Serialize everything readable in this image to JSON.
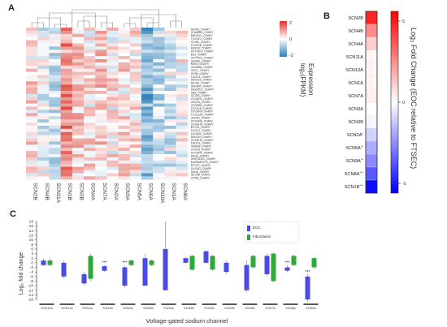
{
  "panels": {
    "a": "A",
    "b": "B",
    "c": "C"
  },
  "heatmap": {
    "colorbar": {
      "title": "Expression",
      "subtitle": "log₂(FPKM)",
      "ticks": [
        "2",
        "0",
        "-2"
      ]
    },
    "columns": [
      "SCN2B",
      "SCN4B",
      "SCN11A",
      "SCN1B",
      "SCN3B",
      "SCN4A",
      "SCN7A",
      "SCN2A",
      "SCN3A",
      "SCN5A",
      "SCN9A",
      "SCN10A",
      "SCN1A",
      "SCN8A"
    ],
    "rows": [
      "AD760_OVARY",
      "CHAMRA_OVARY",
      "EBKOV1_OVARY",
      "TOV21G_OVARY",
      "OVISE_OVARY",
      "COV318_OVARY",
      "MKOS2_OVARY",
      "OVTOKO_OVARY",
      "ES2_OVARY",
      "OVTOKO_OVARY",
      "JHOM1_OVARY",
      "RMGI_OVARY",
      "JHOM2B_OVARY",
      "JHOC_OVARY",
      "OV56_OVARY",
      "CAOV4_OVARY",
      "IGROV1_OVARY",
      "NICAS_OVARY",
      "SNU840_OVARY",
      "OACM5.1_OVARY",
      "IGM_OVARY",
      "OC316_OVARY",
      "OVCAR3_OVARY",
      "JHOC5_OVARY",
      "JHOM2B_OVARY",
      "COV318_OVARY",
      "OVCAR4_OVARY",
      "TOV112D_OVARY",
      "JHOS4_OVARY",
      "OVCAR8_OVARY",
      "OVSAHO_OVARY",
      "EFO21_OVARY",
      "FUOV1_OVARY",
      "COV504_OVARY",
      "SNU119_OVARY",
      "OVSAHO_OVARY",
      "CAOV3_OVARY",
      "OAW28_OVARY",
      "OVK18_OVARY",
      "OVCAR5_OVARY",
      "SNU8_OVARY",
      "ONCODG1_OVARY",
      "KURAMOCHI_OVARY",
      "EFO27_OVARY",
      "OVCAR_OVARY",
      "SNU8_OVARY",
      "HEYA8_OVARY",
      "OVMZ_OVARY"
    ],
    "values": []
  },
  "fold_change": {
    "title": "Log₂ Fold Change (EOC relative to FTSEC)",
    "genes": [
      "SCN2B",
      "SCN4B",
      "SCN4A",
      "SCN11A",
      "SCN10A",
      "SCN1A",
      "SCN7A",
      "SCN3A",
      "SCN3B",
      "SCN2A",
      "SCN5A",
      "SCN9A",
      "SCN8A",
      "SCN1B"
    ],
    "asterisks": [
      "",
      "",
      "",
      "",
      "",
      "",
      "",
      "",
      "",
      "*",
      "**",
      "**",
      "***",
      "***"
    ],
    "values": [
      6.5,
      2.8,
      0.9,
      0.1,
      0.1,
      0.1,
      0.2,
      0.0,
      -0.1,
      -0.8,
      -1.8,
      -2.8,
      -4.5,
      -7.5
    ],
    "colorbar_ticks": [
      "5",
      "0",
      "-5"
    ]
  },
  "chart_data": {
    "type": "bar",
    "title": "",
    "xlabel": "Voltage-gated sodium channel",
    "ylabel": "Log₂ fold change",
    "ylim": [
      -16,
      18
    ],
    "yticks": [
      18,
      16,
      14,
      12,
      10,
      8,
      6,
      4,
      2,
      0,
      -2,
      -4,
      -6,
      -8,
      -10,
      -12,
      -14,
      -16
    ],
    "categories": [
      "SCN10A",
      "SCN11A",
      "SCN1A",
      "SCN1B",
      "SCN2A",
      "SCN2B",
      "SCN3A",
      "SCN3B",
      "SCN4A",
      "SCN4B",
      "SCN5A",
      "SCN7A",
      "SCN8A",
      "SCN9A"
    ],
    "legend": {
      "position": "top-right"
    },
    "series": [
      {
        "name": "EOC",
        "color": "#4a4ae6",
        "low": [
          -1,
          -6,
          -9,
          -3.5,
          -10,
          -10,
          -12,
          0,
          0,
          -4,
          -12,
          -5,
          -3.5,
          -16
        ],
        "high": [
          1,
          0,
          -5,
          -1.5,
          -2,
          2,
          6,
          2,
          5,
          0,
          -1,
          3,
          -2,
          -6
        ],
        "whisker_low": [
          -1.5,
          -7,
          -10,
          -4,
          -11,
          -9,
          -12,
          -0.5,
          -0.5,
          -5,
          -13,
          -6,
          -4,
          -17
        ],
        "whisker_high": [
          2,
          1,
          -4,
          -1,
          -1,
          4,
          18,
          2.5,
          5.5,
          1,
          1,
          4,
          -1,
          -5
        ],
        "asterisks": [
          "",
          "",
          "",
          "***",
          "***",
          "",
          "",
          "",
          "",
          "",
          "",
          "",
          "***",
          "***"
        ]
      },
      {
        "name": "Fibroblasts",
        "color": "#2eaa3a",
        "low": [
          -1,
          null,
          -7,
          null,
          -1,
          -1,
          null,
          -3,
          -3,
          null,
          -2,
          -8,
          -1,
          -2
        ],
        "high": [
          1,
          null,
          3,
          null,
          1,
          1,
          null,
          3,
          3,
          null,
          3,
          4,
          3,
          2
        ],
        "whisker_low": [
          -1.5,
          null,
          -8,
          null,
          -1.5,
          -1.5,
          null,
          -3.5,
          -3.5,
          null,
          -2.5,
          -8.5,
          -1.5,
          -2.5
        ],
        "whisker_high": [
          2,
          null,
          4,
          null,
          1.5,
          1.5,
          null,
          3.5,
          3.5,
          null,
          3.5,
          4.5,
          3.5,
          2.5
        ],
        "asterisks": []
      }
    ]
  }
}
